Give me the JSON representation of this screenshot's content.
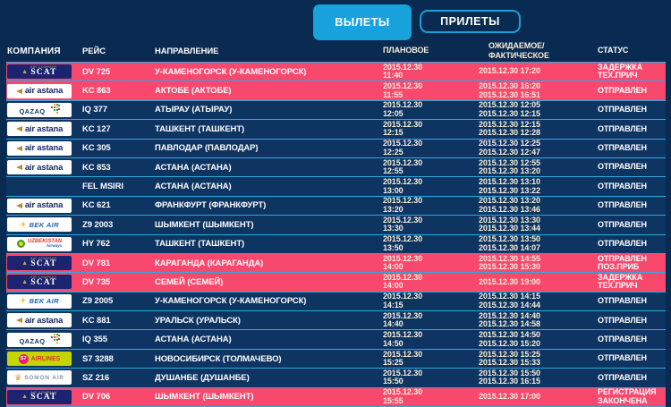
{
  "tabs": {
    "departures": "ВЫЛЕТЫ",
    "arrivals": "ПРИЛЕТЫ"
  },
  "columns": {
    "company": "КОМПАНИЯ",
    "flight": "РЕЙС",
    "direction": "НАПРАВЛЕНИЕ",
    "planned": "ПЛАНОВОЕ",
    "expected_line1": "ОЖИДАЕМОЕ/",
    "expected_line2": "ФАКТИЧЕСКОЕ",
    "status": "СТАТУС"
  },
  "colors": {
    "page_bg": "#0a2b51",
    "row_bg": "#0e3462",
    "row_alert_bg": "#f8486e",
    "separator": "#2fa8e0",
    "tab_active": "#17a2dc",
    "time_text": "#f6eeda",
    "text": "#ffffff"
  },
  "airlines": {
    "scat": {
      "icon": "scat-logo",
      "name": "SCAT",
      "sub": "AIR COMPANY"
    },
    "airastana": {
      "icon": "air-astana-logo",
      "name": "air astana"
    },
    "qazaq": {
      "icon": "qazaq-logo",
      "name": "QAZAQ"
    },
    "bekair": {
      "icon": "bek-air-logo",
      "name": "BEK AIR"
    },
    "uzbekistan": {
      "icon": "uzbekistan-airways-logo",
      "name": "UZBEKISTAN",
      "sub": "Airways"
    },
    "s7": {
      "icon": "s7-airlines-logo",
      "name": "S7",
      "sub": "AIRLINES"
    },
    "somon": {
      "icon": "somon-air-logo",
      "name": "SOMON AIR"
    }
  },
  "flights": [
    {
      "airline": "scat",
      "flight": "DV 725",
      "direction": "У-КАМЕНОГОРСК (У-КАМЕНОГОРСК)",
      "planned": [
        "2015.12.30",
        "11:40"
      ],
      "expected": [
        "2015.12.30 17:20"
      ],
      "status": [
        "ЗАДЕРЖКА",
        "ТЕХ.ПРИЧ"
      ],
      "alert": true
    },
    {
      "airline": "airastana",
      "flight": "KC 863",
      "direction": "АКТОБЕ (АКТОБЕ)",
      "planned": [
        "2015.12.30",
        "11:55"
      ],
      "expected": [
        "2015.12.30 16:20",
        "2015.12.30 16:51"
      ],
      "status": [
        "ОТПРАВЛЕН"
      ],
      "alert": true
    },
    {
      "airline": "qazaq",
      "flight": "IQ 377",
      "direction": "АТЫРАУ (АТЫРАУ)",
      "planned": [
        "2015.12.30",
        "12:05"
      ],
      "expected": [
        "2015.12.30 12:05",
        "2015.12.30 12:15"
      ],
      "status": [
        "ОТПРАВЛЕН"
      ],
      "alert": false
    },
    {
      "airline": "airastana",
      "flight": "KC 127",
      "direction": "ТАШКЕНТ (ТАШКЕНТ)",
      "planned": [
        "2015.12.30",
        "12:15"
      ],
      "expected": [
        "2015.12.30 12:15",
        "2015.12.30 12:28"
      ],
      "status": [
        "ОТПРАВЛЕН"
      ],
      "alert": false
    },
    {
      "airline": "airastana",
      "flight": "KC 305",
      "direction": "ПАВЛОДАР (ПАВЛОДАР)",
      "planned": [
        "2015.12.30",
        "12:25"
      ],
      "expected": [
        "2015.12.30 12:25",
        "2015.12.30 12:47"
      ],
      "status": [
        "ОТПРАВЛЕН"
      ],
      "alert": false
    },
    {
      "airline": "airastana",
      "flight": "KC 853",
      "direction": "АСТАНА (АСТАНА)",
      "planned": [
        "2015.12.30",
        "12:55"
      ],
      "expected": [
        "2015.12.30 12:55",
        "2015.12.30 13:20"
      ],
      "status": [
        "ОТПРАВЛЕН"
      ],
      "alert": false
    },
    {
      "airline": null,
      "flight": "FEL MSIRI",
      "direction": "АСТАНА (АСТАНА)",
      "planned": [
        "2015.12.30",
        "13:00"
      ],
      "expected": [
        "2015.12.30 13:10",
        "2015.12.30 13:22"
      ],
      "status": [
        "ОТПРАВЛЕН"
      ],
      "alert": false
    },
    {
      "airline": "airastana",
      "flight": "KC 621",
      "direction": "ФРАНКФУРТ (ФРАНКФУРТ)",
      "planned": [
        "2015.12.30",
        "13:20"
      ],
      "expected": [
        "2015.12.30 13:20",
        "2015.12.30 13:46"
      ],
      "status": [
        "ОТПРАВЛЕН"
      ],
      "alert": false
    },
    {
      "airline": "bekair",
      "flight": "Z9 2003",
      "direction": "ШЫМКЕНТ (ШЫМКЕНТ)",
      "planned": [
        "2015.12.30",
        "13:30"
      ],
      "expected": [
        "2015.12.30 13:30",
        "2015.12.30 13:44"
      ],
      "status": [
        "ОТПРАВЛЕН"
      ],
      "alert": false
    },
    {
      "airline": "uzbekistan",
      "flight": "HY 762",
      "direction": "ТАШКЕНТ (ТАШКЕНТ)",
      "planned": [
        "2015.12.30",
        "13:50"
      ],
      "expected": [
        "2015.12.30 13:50",
        "2015.12.30 14:07"
      ],
      "status": [
        "ОТПРАВЛЕН"
      ],
      "alert": false
    },
    {
      "airline": "scat",
      "flight": "DV 781",
      "direction": "КАРАГАНДА (КАРАГАНДА)",
      "planned": [
        "2015.12.30",
        "14:00"
      ],
      "expected": [
        "2015.12.30 14:55",
        "2015.12.30 15:30"
      ],
      "status": [
        "ОТПРАВЛЕН",
        "ПОЗ.ПРИБ"
      ],
      "alert": true
    },
    {
      "airline": "scat",
      "flight": "DV 735",
      "direction": "СЕМЕЙ (СЕМЕЙ)",
      "planned": [
        "2015.12.30",
        "14:00"
      ],
      "expected": [
        "2015.12.30 19:00"
      ],
      "status": [
        "ЗАДЕРЖКА",
        "ТЕХ.ПРИЧ"
      ],
      "alert": true
    },
    {
      "airline": "bekair",
      "flight": "Z9 2005",
      "direction": "У-КАМЕНОГОРСК (У-КАМЕНОГОРСК)",
      "planned": [
        "2015.12.30",
        "14:15"
      ],
      "expected": [
        "2015.12.30 14:15",
        "2015.12.30 14:44"
      ],
      "status": [
        "ОТПРАВЛЕН"
      ],
      "alert": false
    },
    {
      "airline": "airastana",
      "flight": "KC 881",
      "direction": "УРАЛЬСК (УРАЛЬСК)",
      "planned": [
        "2015.12.30",
        "14:40"
      ],
      "expected": [
        "2015.12.30 14:40",
        "2015.12.30 14:58"
      ],
      "status": [
        "ОТПРАВЛЕН"
      ],
      "alert": false
    },
    {
      "airline": "qazaq",
      "flight": "IQ 355",
      "direction": "АСТАНА (АСТАНА)",
      "planned": [
        "2015.12.30",
        "14:50"
      ],
      "expected": [
        "2015.12.30 14:50",
        "2015.12.30 15:20"
      ],
      "status": [
        "ОТПРАВЛЕН"
      ],
      "alert": false
    },
    {
      "airline": "s7",
      "flight": "S7 3288",
      "direction": "НОВОСИБИРСК (ТОЛМАЧЕВО)",
      "planned": [
        "2015.12.30",
        "15:25"
      ],
      "expected": [
        "2015.12.30 15:25",
        "2015.12.30 15:33"
      ],
      "status": [
        "ОТПРАВЛЕН"
      ],
      "alert": false
    },
    {
      "airline": "somon",
      "flight": "SZ 216",
      "direction": "ДУШАНБЕ (ДУШАНБЕ)",
      "planned": [
        "2015.12.30",
        "15:50"
      ],
      "expected": [
        "2015.12.30 15:50",
        "2015.12.30 16:15"
      ],
      "status": [
        "ОТПРАВЛЕН"
      ],
      "alert": false
    },
    {
      "airline": "scat",
      "flight": "DV 706",
      "direction": "ШЫМКЕНТ (ШЫМКЕНТ)",
      "planned": [
        "2015.12.30",
        "15:55"
      ],
      "expected": [
        "2015.12.30 17:00"
      ],
      "status": [
        "РЕГИСТРАЦИЯ",
        "ЗАКОНЧЕНА"
      ],
      "alert": true
    }
  ]
}
